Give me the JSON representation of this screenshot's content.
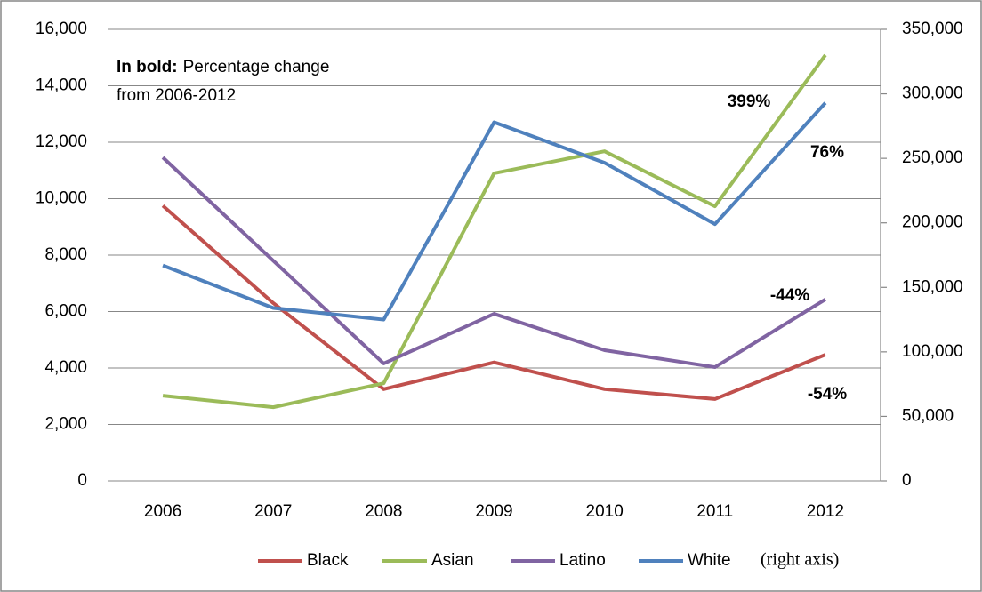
{
  "chart_data": {
    "type": "line",
    "categories": [
      "2006",
      "2007",
      "2008",
      "2009",
      "2010",
      "2011",
      "2012"
    ],
    "series": [
      {
        "name": "Black",
        "color": "#c0504d",
        "values": [
          9750,
          6300,
          3250,
          4200,
          3250,
          2900,
          4470
        ]
      },
      {
        "name": "Asian",
        "color": "#9bbb59",
        "values": [
          3020,
          2610,
          3460,
          10900,
          11680,
          9730,
          15090
        ]
      },
      {
        "name": "Latino",
        "color": "#8064a2",
        "values": [
          11460,
          7800,
          4160,
          5920,
          4630,
          4030,
          6430
        ]
      },
      {
        "name": "White",
        "color": "#4f81bd",
        "axis": "y2",
        "values": [
          167000,
          134000,
          125000,
          278000,
          246600,
          199000,
          293000
        ]
      }
    ],
    "ylim": [
      0,
      16000
    ],
    "yticks": [
      0,
      {
        "value": 2000,
        "label": "2,000"
      },
      {
        "value": 4000,
        "label": "4,000"
      },
      {
        "value": 6000,
        "label": "6,000"
      },
      {
        "value": 8000,
        "label": "8,000"
      },
      {
        "value": 10000,
        "label": "10,000"
      },
      {
        "value": 12000,
        "label": "12,000"
      },
      {
        "value": 14000,
        "label": "14,000"
      },
      {
        "value": 16000,
        "label": "16,000"
      }
    ],
    "y2lim": [
      0,
      350000
    ],
    "y2ticks": [
      0,
      {
        "value": 50000,
        "label": "50,000"
      },
      {
        "value": 100000,
        "label": "100,000"
      },
      {
        "value": 150000,
        "label": "150,000"
      },
      {
        "value": 200000,
        "label": "200,000"
      },
      {
        "value": 250000,
        "label": "250,000"
      },
      {
        "value": 300000,
        "label": "300,000"
      },
      {
        "value": 350000,
        "label": "350,000"
      }
    ],
    "grid": true,
    "legend": "bottom",
    "legend_note": "(right axis)",
    "note": {
      "bold": "In bold:",
      "lines": [
        "Percentage change",
        "from 2006-2012"
      ]
    },
    "annotations": [
      "399%",
      "76%",
      "-44%",
      "-54%"
    ]
  }
}
